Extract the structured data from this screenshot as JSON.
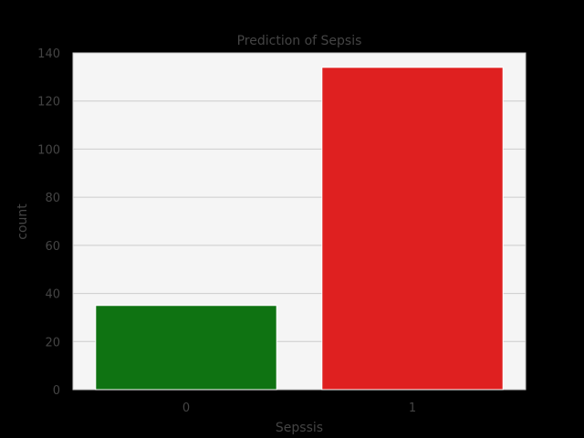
{
  "chart_data": {
    "type": "bar",
    "title": "Prediction of Sepsis",
    "xlabel": "Sepssis",
    "ylabel": "count",
    "categories": [
      "0",
      "1"
    ],
    "values": [
      35,
      134
    ],
    "ylim": [
      0,
      140
    ],
    "yticks": [
      0,
      20,
      40,
      60,
      80,
      100,
      120,
      140
    ],
    "grid": true,
    "colors": {
      "background": "#000000",
      "plot_background": "#f5f5f5",
      "grid": "#cccccc",
      "bars": [
        "#0f7312",
        "#df2020"
      ]
    }
  }
}
